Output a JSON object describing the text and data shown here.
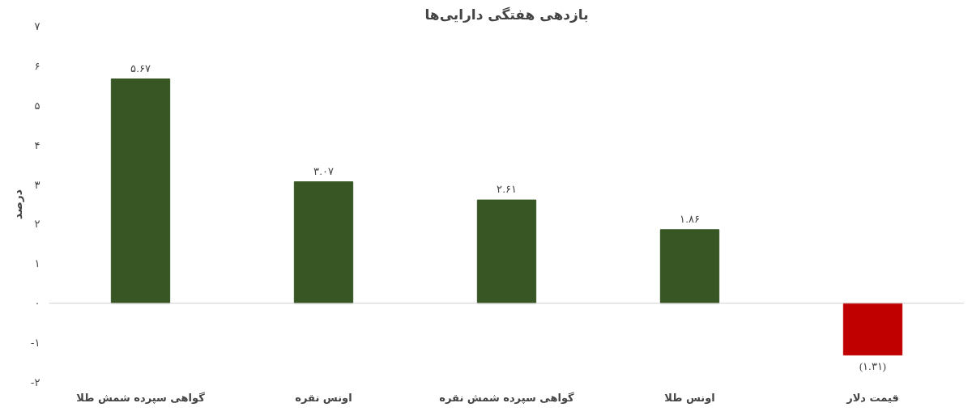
{
  "chart_data": {
    "type": "bar",
    "title": "بازدهی هفتگی دارایی‌ها",
    "ylabel": "درصد",
    "categories": [
      "گواهی سپرده شمش طلا",
      "اونس نقره",
      "گواهی سپرده شمش نقره",
      "اونس طلا",
      "قیمت دلار"
    ],
    "values": [
      5.67,
      3.07,
      2.61,
      1.86,
      -1.31
    ],
    "colors": [
      "#375623",
      "#375623",
      "#375623",
      "#375623",
      "#c00000"
    ],
    "value_labels": [
      "۵.۶۷",
      "۳.۰۷",
      "۲.۶۱",
      "۱.۸۶",
      "(۱.۳۱)"
    ],
    "ylim": [
      -2,
      7
    ],
    "yticks": [
      {
        "value": -2,
        "label": "-۲"
      },
      {
        "value": -1,
        "label": "-۱"
      },
      {
        "value": 0,
        "label": "۰"
      },
      {
        "value": 1,
        "label": "۱"
      },
      {
        "value": 2,
        "label": "۲"
      },
      {
        "value": 3,
        "label": "۳"
      },
      {
        "value": 4,
        "label": "۴"
      },
      {
        "value": 5,
        "label": "۵"
      },
      {
        "value": 6,
        "label": "۶"
      },
      {
        "value": 7,
        "label": "۷"
      }
    ],
    "ref_lines": [
      {
        "axis": "y",
        "value": 0,
        "color": "#d0d0d0"
      }
    ],
    "grid": false
  }
}
